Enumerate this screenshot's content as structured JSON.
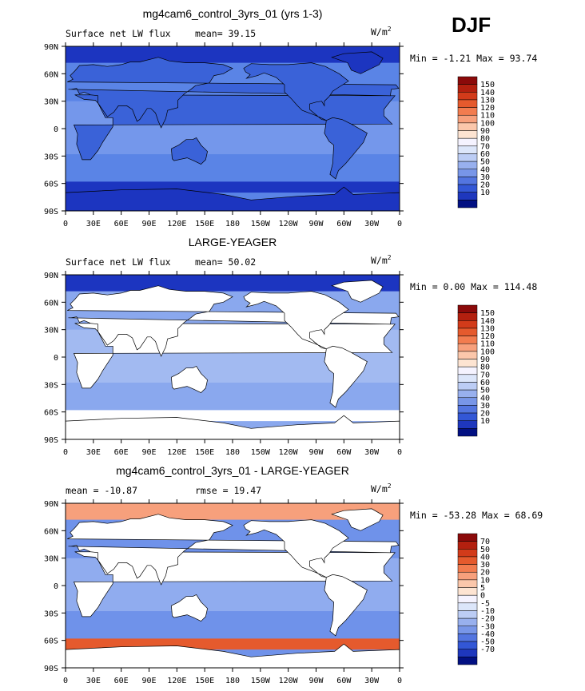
{
  "season_label": "DJF",
  "chart_data": [
    {
      "type": "heatmap",
      "title": "mg4cam6_control_3yrs_01 (yrs 1-3)",
      "left_label": "Surface net LW flux",
      "stat1": "mean=  39.15",
      "stat2": "",
      "units": "W/m",
      "units_exp": "2",
      "minmax": "Min =   -1.21 Max =  93.74",
      "x_ticks": [
        "0",
        "30E",
        "60E",
        "90E",
        "120E",
        "150E",
        "180",
        "150W",
        "120W",
        "90W",
        "60W",
        "30W",
        "0"
      ],
      "y_ticks": [
        "90N",
        "60N",
        "30N",
        "0",
        "30S",
        "60S",
        "90S"
      ],
      "xlim": [
        0,
        360
      ],
      "ylim": [
        -90,
        90
      ],
      "colorbar": {
        "labels": [
          "150",
          "140",
          "130",
          "120",
          "110",
          "100",
          "90",
          "80",
          "70",
          "60",
          "50",
          "40",
          "30",
          "20",
          "10"
        ],
        "colors": [
          "#8b0a0a",
          "#b3200f",
          "#d23b1a",
          "#e55a2d",
          "#f27c4f",
          "#f7a07c",
          "#fbc7ab",
          "#fde4d2",
          "#f5f3ff",
          "#dce6fa",
          "#bccdf5",
          "#98b0ee",
          "#7896e8",
          "#5375e0",
          "#3357d6",
          "#1e37bd",
          "#021082"
        ]
      },
      "field": {
        "land": "#3a62d8",
        "ocean_base": "#5a84e6",
        "ocean_tropic": "#7d9eec",
        "ice": "#1c35c0",
        "polar_n": "#1c35c0",
        "polar_s": "#1c35c0"
      }
    },
    {
      "type": "heatmap",
      "title": "LARGE-YEAGER",
      "left_label": "Surface net LW flux",
      "stat1": "mean=  50.02",
      "stat2": "",
      "units": "W/m",
      "units_exp": "2",
      "minmax": "Min =    0.00 Max = 114.48",
      "x_ticks": [
        "0",
        "30E",
        "60E",
        "90E",
        "120E",
        "150E",
        "180",
        "150W",
        "120W",
        "90W",
        "60W",
        "30W",
        "0"
      ],
      "y_ticks": [
        "90N",
        "60N",
        "30N",
        "0",
        "30S",
        "60S",
        "90S"
      ],
      "xlim": [
        0,
        360
      ],
      "ylim": [
        -90,
        90
      ],
      "colorbar": {
        "labels": [
          "150",
          "140",
          "130",
          "120",
          "110",
          "100",
          "90",
          "80",
          "70",
          "60",
          "50",
          "40",
          "30",
          "20",
          "10"
        ],
        "colors": [
          "#8b0a0a",
          "#b3200f",
          "#d23b1a",
          "#e55a2d",
          "#f27c4f",
          "#f7a07c",
          "#fbc7ab",
          "#fde4d2",
          "#f5f3ff",
          "#dce6fa",
          "#bccdf5",
          "#98b0ee",
          "#7896e8",
          "#5375e0",
          "#3357d6",
          "#1e37bd",
          "#021082"
        ]
      },
      "field": {
        "land": "#ffffff",
        "ocean_base": "#8aa8ee",
        "ocean_tropic": "#a9c0f2",
        "ice": "#ffffff",
        "polar_n": "#1c35c0",
        "polar_s": "#ffffff"
      }
    },
    {
      "type": "heatmap",
      "title": "mg4cam6_control_3yrs_01 - LARGE-YEAGER",
      "left_label": "mean = -10.87",
      "stat1": "rmse =  19.47",
      "stat2": "",
      "units": "W/m",
      "units_exp": "2",
      "minmax": "Min = -53.28 Max =  68.69",
      "x_ticks": [
        "0",
        "30E",
        "60E",
        "90E",
        "120E",
        "150E",
        "180",
        "150W",
        "120W",
        "90W",
        "60W",
        "30W",
        "0"
      ],
      "y_ticks": [
        "90N",
        "60N",
        "30N",
        "0",
        "30S",
        "60S",
        "90S"
      ],
      "xlim": [
        0,
        360
      ],
      "ylim": [
        -90,
        90
      ],
      "colorbar": {
        "labels": [
          "70",
          "50",
          "40",
          "30",
          "20",
          "10",
          "5",
          "0",
          "-5",
          "-10",
          "-20",
          "-30",
          "-40",
          "-50",
          "-70"
        ],
        "colors": [
          "#8b0a0a",
          "#b3200f",
          "#d23b1a",
          "#e55a2d",
          "#f27c4f",
          "#f7a07c",
          "#fbc7ab",
          "#fde4d2",
          "#f5f3ff",
          "#dce6fa",
          "#bccdf5",
          "#98b0ee",
          "#7896e8",
          "#5375e0",
          "#3357d6",
          "#1e37bd",
          "#021082"
        ]
      },
      "field": {
        "land": "#ffffff",
        "ocean_base": "#6f92ea",
        "ocean_tropic": "#9bb4f0",
        "ice": "#ffffff",
        "polar_n": "#f7a07c",
        "polar_s": "#e55a2d"
      }
    }
  ]
}
